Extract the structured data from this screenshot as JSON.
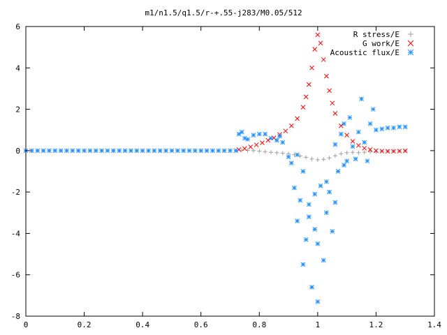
{
  "chart_data": {
    "type": "scatter",
    "title": "m1/n1.5/q1.5/r-+.55-j283/M0.05/512",
    "xlabel": "",
    "ylabel": "",
    "xlim": [
      0,
      1.4
    ],
    "ylim": [
      -8,
      6
    ],
    "x_ticks": [
      "0",
      "0.2",
      "0.4",
      "0.6",
      "0.8",
      "1",
      "1.2",
      "1.4"
    ],
    "y_ticks": [
      "-8",
      "-6",
      "-4",
      "-2",
      "0",
      "2",
      "4",
      "6"
    ],
    "grid": false,
    "legend_position": "top-right",
    "series": [
      {
        "name": "R stress/E",
        "marker": "plus",
        "color": "#a0a0a0",
        "points": [
          [
            0.0,
            0.0
          ],
          [
            0.02,
            0.0
          ],
          [
            0.04,
            0.0
          ],
          [
            0.06,
            0.0
          ],
          [
            0.08,
            0.0
          ],
          [
            0.1,
            0.0
          ],
          [
            0.12,
            0.0
          ],
          [
            0.14,
            0.0
          ],
          [
            0.16,
            0.0
          ],
          [
            0.18,
            0.0
          ],
          [
            0.2,
            0.0
          ],
          [
            0.22,
            0.0
          ],
          [
            0.24,
            0.0
          ],
          [
            0.26,
            0.0
          ],
          [
            0.28,
            0.0
          ],
          [
            0.3,
            0.0
          ],
          [
            0.32,
            0.0
          ],
          [
            0.34,
            0.0
          ],
          [
            0.36,
            0.0
          ],
          [
            0.38,
            0.0
          ],
          [
            0.4,
            0.0
          ],
          [
            0.42,
            0.0
          ],
          [
            0.44,
            0.0
          ],
          [
            0.46,
            0.0
          ],
          [
            0.48,
            0.0
          ],
          [
            0.5,
            0.0
          ],
          [
            0.52,
            0.0
          ],
          [
            0.54,
            0.0
          ],
          [
            0.56,
            0.0
          ],
          [
            0.58,
            0.0
          ],
          [
            0.6,
            0.0
          ],
          [
            0.62,
            0.0
          ],
          [
            0.64,
            0.0
          ],
          [
            0.66,
            0.0
          ],
          [
            0.68,
            0.0
          ],
          [
            0.7,
            0.0
          ],
          [
            0.72,
            0.0
          ],
          [
            0.74,
            0.02
          ],
          [
            0.76,
            0.01
          ],
          [
            0.78,
            0.0
          ],
          [
            0.8,
            -0.02
          ],
          [
            0.82,
            -0.05
          ],
          [
            0.84,
            -0.08
          ],
          [
            0.86,
            -0.1
          ],
          [
            0.88,
            -0.12
          ],
          [
            0.9,
            -0.15
          ],
          [
            0.92,
            -0.2
          ],
          [
            0.94,
            -0.26
          ],
          [
            0.96,
            -0.32
          ],
          [
            0.98,
            -0.4
          ],
          [
            1.0,
            -0.44
          ],
          [
            1.02,
            -0.42
          ],
          [
            1.04,
            -0.35
          ],
          [
            1.06,
            -0.25
          ],
          [
            1.08,
            -0.15
          ],
          [
            1.1,
            -0.1
          ],
          [
            1.12,
            -0.08
          ],
          [
            1.14,
            -0.1
          ],
          [
            1.16,
            -0.08
          ],
          [
            1.18,
            -0.05
          ],
          [
            1.2,
            -0.05
          ],
          [
            1.22,
            -0.03
          ],
          [
            1.24,
            -0.03
          ],
          [
            1.26,
            -0.02
          ],
          [
            1.28,
            -0.02
          ],
          [
            1.3,
            -0.01
          ]
        ]
      },
      {
        "name": "G work/E",
        "marker": "cross",
        "color": "#ff0000",
        "points": [
          [
            0.73,
            0.05
          ],
          [
            0.75,
            0.1
          ],
          [
            0.77,
            0.18
          ],
          [
            0.79,
            0.28
          ],
          [
            0.81,
            0.38
          ],
          [
            0.83,
            0.5
          ],
          [
            0.85,
            0.62
          ],
          [
            0.87,
            0.78
          ],
          [
            0.89,
            0.95
          ],
          [
            0.91,
            1.2
          ],
          [
            0.93,
            1.55
          ],
          [
            0.95,
            2.1
          ],
          [
            0.96,
            2.6
          ],
          [
            0.97,
            3.2
          ],
          [
            0.98,
            4.0
          ],
          [
            0.99,
            4.9
          ],
          [
            1.0,
            5.6
          ],
          [
            1.01,
            5.2
          ],
          [
            1.02,
            4.4
          ],
          [
            1.03,
            3.6
          ],
          [
            1.04,
            2.9
          ],
          [
            1.05,
            2.3
          ],
          [
            1.06,
            1.8
          ],
          [
            1.08,
            1.2
          ],
          [
            1.1,
            0.75
          ],
          [
            1.12,
            0.45
          ],
          [
            1.14,
            0.25
          ],
          [
            1.16,
            0.12
          ],
          [
            1.18,
            0.05
          ],
          [
            1.2,
            0.0
          ],
          [
            1.22,
            -0.02
          ],
          [
            1.24,
            -0.03
          ],
          [
            1.26,
            -0.03
          ],
          [
            1.28,
            -0.02
          ],
          [
            1.3,
            -0.01
          ]
        ]
      },
      {
        "name": "Acoustic flux/E",
        "marker": "star",
        "color": "#1e90ff",
        "points": [
          [
            0.0,
            0.0
          ],
          [
            0.02,
            0.0
          ],
          [
            0.04,
            0.0
          ],
          [
            0.06,
            0.0
          ],
          [
            0.08,
            0.0
          ],
          [
            0.1,
            0.0
          ],
          [
            0.12,
            0.0
          ],
          [
            0.14,
            0.0
          ],
          [
            0.16,
            0.0
          ],
          [
            0.18,
            0.0
          ],
          [
            0.2,
            0.0
          ],
          [
            0.22,
            0.0
          ],
          [
            0.24,
            0.0
          ],
          [
            0.26,
            0.0
          ],
          [
            0.28,
            0.0
          ],
          [
            0.3,
            0.0
          ],
          [
            0.32,
            0.0
          ],
          [
            0.34,
            0.0
          ],
          [
            0.36,
            0.0
          ],
          [
            0.38,
            0.0
          ],
          [
            0.4,
            0.0
          ],
          [
            0.42,
            0.0
          ],
          [
            0.44,
            0.0
          ],
          [
            0.46,
            0.0
          ],
          [
            0.48,
            0.0
          ],
          [
            0.5,
            0.0
          ],
          [
            0.52,
            0.0
          ],
          [
            0.54,
            0.0
          ],
          [
            0.56,
            0.0
          ],
          [
            0.58,
            0.0
          ],
          [
            0.6,
            0.0
          ],
          [
            0.62,
            0.0
          ],
          [
            0.64,
            0.0
          ],
          [
            0.66,
            0.0
          ],
          [
            0.68,
            0.0
          ],
          [
            0.7,
            0.0
          ],
          [
            0.72,
            0.0
          ],
          [
            0.73,
            0.8
          ],
          [
            0.74,
            0.9
          ],
          [
            0.75,
            0.6
          ],
          [
            0.76,
            0.55
          ],
          [
            0.78,
            0.75
          ],
          [
            0.8,
            0.8
          ],
          [
            0.82,
            0.8
          ],
          [
            0.84,
            0.6
          ],
          [
            0.86,
            0.5
          ],
          [
            0.87,
            0.7
          ],
          [
            0.88,
            0.4
          ],
          [
            0.9,
            -0.3
          ],
          [
            0.91,
            -0.6
          ],
          [
            0.92,
            -1.8
          ],
          [
            0.93,
            -3.4
          ],
          [
            0.94,
            -2.4
          ],
          [
            0.95,
            -5.5
          ],
          [
            0.96,
            -4.3
          ],
          [
            0.97,
            -2.6
          ],
          [
            0.98,
            -6.6
          ],
          [
            0.99,
            -3.8
          ],
          [
            1.0,
            -4.5
          ],
          [
            1.01,
            -1.7
          ],
          [
            1.02,
            -5.3
          ],
          [
            1.03,
            -3.0
          ],
          [
            1.04,
            -2.0
          ],
          [
            1.05,
            -3.9
          ],
          [
            1.06,
            -2.5
          ],
          [
            1.07,
            -1.0
          ],
          [
            1.08,
            0.8
          ],
          [
            1.09,
            1.3
          ],
          [
            1.1,
            -0.5
          ],
          [
            1.11,
            1.6
          ],
          [
            1.12,
            0.2
          ],
          [
            1.13,
            -0.4
          ],
          [
            1.14,
            0.9
          ],
          [
            1.15,
            2.5
          ],
          [
            1.16,
            0.4
          ],
          [
            1.17,
            -0.5
          ],
          [
            1.18,
            1.3
          ],
          [
            1.19,
            2.0
          ],
          [
            1.2,
            1.0
          ],
          [
            1.22,
            1.05
          ],
          [
            1.24,
            1.1
          ],
          [
            1.26,
            1.1
          ],
          [
            1.28,
            1.15
          ],
          [
            1.3,
            1.15
          ],
          [
            1.0,
            -7.3
          ],
          [
            0.97,
            -3.2
          ],
          [
            0.99,
            -2.1
          ],
          [
            1.03,
            -1.5
          ],
          [
            0.95,
            -1.0
          ],
          [
            0.93,
            -0.2
          ],
          [
            1.09,
            -0.7
          ],
          [
            1.06,
            0.3
          ]
        ]
      }
    ]
  }
}
